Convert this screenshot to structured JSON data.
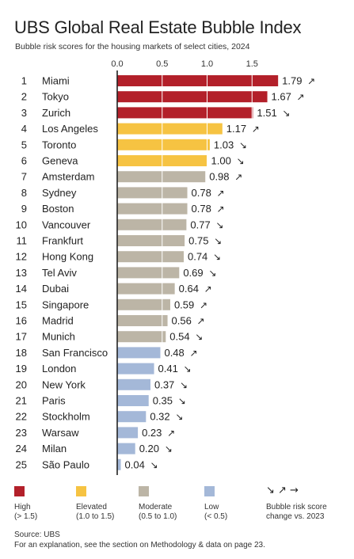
{
  "title": "UBS Global Real Estate Bubble Index",
  "subtitle": "Bubble risk scores for the housing markets of select cities, 2024",
  "chart_data": {
    "type": "bar",
    "orientation": "horizontal",
    "title": "UBS Global Real Estate Bubble Index",
    "subtitle": "Bubble risk scores for the housing markets of select cities, 2024",
    "xlim": [
      0,
      1.8
    ],
    "xticks": [
      "0.0",
      "0.5",
      "1.0",
      "1.5"
    ],
    "grid": true,
    "rows": [
      {
        "rank": "1",
        "city": "Miami",
        "value": 1.79,
        "label": "1.79",
        "change": "up",
        "category": "high"
      },
      {
        "rank": "2",
        "city": "Tokyo",
        "value": 1.67,
        "label": "1.67",
        "change": "up",
        "category": "high"
      },
      {
        "rank": "3",
        "city": "Zurich",
        "value": 1.51,
        "label": "1.51",
        "change": "down",
        "category": "high"
      },
      {
        "rank": "4",
        "city": "Los Angeles",
        "value": 1.17,
        "label": "1.17",
        "change": "up",
        "category": "elevated"
      },
      {
        "rank": "5",
        "city": "Toronto",
        "value": 1.03,
        "label": "1.03",
        "change": "down",
        "category": "elevated"
      },
      {
        "rank": "6",
        "city": "Geneva",
        "value": 1.0,
        "label": "1.00",
        "change": "down",
        "category": "elevated"
      },
      {
        "rank": "7",
        "city": "Amsterdam",
        "value": 0.98,
        "label": "0.98",
        "change": "up",
        "category": "moderate"
      },
      {
        "rank": "8",
        "city": "Sydney",
        "value": 0.78,
        "label": "0.78",
        "change": "up",
        "category": "moderate"
      },
      {
        "rank": "9",
        "city": "Boston",
        "value": 0.78,
        "label": "0.78",
        "change": "up",
        "category": "moderate"
      },
      {
        "rank": "10",
        "city": "Vancouver",
        "value": 0.77,
        "label": "0.77",
        "change": "down",
        "category": "moderate"
      },
      {
        "rank": "11",
        "city": "Frankfurt",
        "value": 0.75,
        "label": "0.75",
        "change": "down",
        "category": "moderate"
      },
      {
        "rank": "12",
        "city": "Hong Kong",
        "value": 0.74,
        "label": "0.74",
        "change": "down",
        "category": "moderate"
      },
      {
        "rank": "13",
        "city": "Tel Aviv",
        "value": 0.69,
        "label": "0.69",
        "change": "down",
        "category": "moderate"
      },
      {
        "rank": "14",
        "city": "Dubai",
        "value": 0.64,
        "label": "0.64",
        "change": "up",
        "category": "moderate"
      },
      {
        "rank": "15",
        "city": "Singapore",
        "value": 0.59,
        "label": "0.59",
        "change": "up",
        "category": "moderate"
      },
      {
        "rank": "16",
        "city": "Madrid",
        "value": 0.56,
        "label": "0.56",
        "change": "up",
        "category": "moderate"
      },
      {
        "rank": "17",
        "city": "Munich",
        "value": 0.54,
        "label": "0.54",
        "change": "down",
        "category": "moderate"
      },
      {
        "rank": "18",
        "city": "San Francisco",
        "value": 0.48,
        "label": "0.48",
        "change": "up",
        "category": "low"
      },
      {
        "rank": "19",
        "city": "London",
        "value": 0.41,
        "label": "0.41",
        "change": "down",
        "category": "low"
      },
      {
        "rank": "20",
        "city": "New York",
        "value": 0.37,
        "label": "0.37",
        "change": "down",
        "category": "low"
      },
      {
        "rank": "21",
        "city": "Paris",
        "value": 0.35,
        "label": "0.35",
        "change": "down",
        "category": "low"
      },
      {
        "rank": "22",
        "city": "Stockholm",
        "value": 0.32,
        "label": "0.32",
        "change": "down",
        "category": "low"
      },
      {
        "rank": "23",
        "city": "Warsaw",
        "value": 0.23,
        "label": "0.23",
        "change": "up",
        "category": "low"
      },
      {
        "rank": "24",
        "city": "Milan",
        "value": 0.2,
        "label": "0.20",
        "change": "down",
        "category": "low"
      },
      {
        "rank": "25",
        "city": "São Paulo",
        "value": 0.04,
        "label": "0.04",
        "change": "down",
        "category": "low"
      }
    ]
  },
  "colors": {
    "high": "#b3202a",
    "elevated": "#f6c342",
    "moderate": "#bcb5a6",
    "low": "#a4b8d8",
    "axis": "#222222"
  },
  "arrows": {
    "up": "↗",
    "right": "→",
    "down": "↘"
  },
  "legend": {
    "items": [
      {
        "key": "high",
        "label": "High",
        "range": "(> 1.5)"
      },
      {
        "key": "elevated",
        "label": "Elevated",
        "range": "(1.0 to 1.5)"
      },
      {
        "key": "moderate",
        "label": "Moderate",
        "range": "(0.5 to 1.0)"
      },
      {
        "key": "low",
        "label": "Low",
        "range": "(< 0.5)"
      }
    ],
    "change_symbols": "↘ ↗ →",
    "change_label": "Bubble risk score",
    "change_label2": "change vs. 2023"
  },
  "footer": {
    "source": "Source: UBS",
    "note": "For an explanation, see the section on Methodology & data on page 23."
  }
}
